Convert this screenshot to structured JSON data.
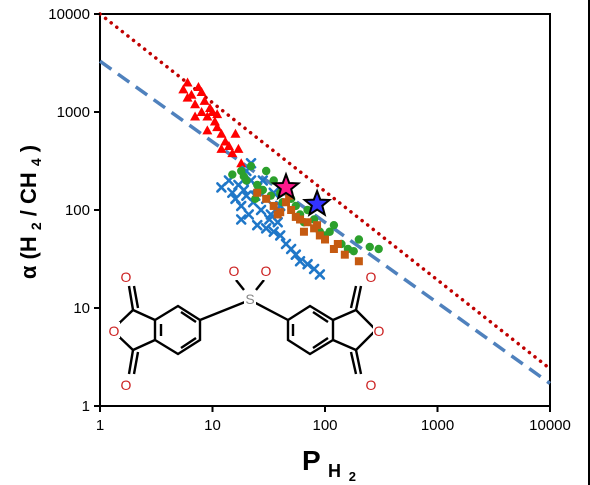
{
  "colors": {
    "upper_bound": "#c00000",
    "lower_bound": "#4f81bd",
    "red_series": "#ff0000",
    "blue_series": "#1f77c8",
    "green_series": "#2ca02c",
    "orange_series": "#c55a11",
    "star_magenta": "#ff1a8c",
    "star_blue": "#3333ff",
    "oxygen": "#cc2222",
    "sulfur": "#888888"
  },
  "axes": {
    "x_ticks": [
      "1",
      "10",
      "100",
      "1000",
      "10000"
    ],
    "y_ticks": [
      "1",
      "10",
      "100",
      "1000",
      "10000"
    ],
    "x_label_main": "P",
    "x_label_sub": "H2",
    "y_label_parts": [
      "α (H",
      "2",
      " / CH",
      "4",
      ")"
    ]
  },
  "structure": {
    "oxygen_label": "O",
    "sulfur_label": "S"
  },
  "chart_data": {
    "type": "scatter",
    "x_scale": "log",
    "y_scale": "log",
    "xlim": [
      1,
      10000
    ],
    "ylim": [
      1,
      10000
    ],
    "grid": false,
    "legend": "none",
    "lines": [
      {
        "style": "dotted",
        "color": "#c00000",
        "points": [
          [
            1,
            10000
          ],
          [
            10000,
            2.4
          ]
        ]
      },
      {
        "style": "dashed",
        "color": "#4f81bd",
        "points": [
          [
            1,
            3300
          ],
          [
            10000,
            1.7
          ]
        ]
      }
    ],
    "series": [
      {
        "marker": "triangle",
        "color": "#ff0000",
        "points": [
          [
            5.5,
            1700
          ],
          [
            6,
            2000
          ],
          [
            6.5,
            1500
          ],
          [
            7,
            1200
          ],
          [
            7.5,
            1800
          ],
          [
            8,
            1000
          ],
          [
            8.5,
            1300
          ],
          [
            9,
            900
          ],
          [
            9.5,
            1100
          ],
          [
            10,
            1000
          ],
          [
            10.5,
            800
          ],
          [
            11,
            700
          ],
          [
            12,
            600
          ],
          [
            13,
            500
          ],
          [
            14,
            450
          ],
          [
            15,
            380
          ],
          [
            16,
            600
          ],
          [
            17,
            420
          ],
          [
            6,
            1400
          ],
          [
            7,
            900
          ],
          [
            8,
            1600
          ],
          [
            9,
            650
          ],
          [
            11,
            950
          ],
          [
            12,
            420
          ],
          [
            18,
            300
          ]
        ]
      },
      {
        "marker": "x",
        "color": "#1f77c8",
        "points": [
          [
            12,
            170
          ],
          [
            14,
            200
          ],
          [
            15,
            150
          ],
          [
            16,
            130
          ],
          [
            17,
            180
          ],
          [
            18,
            110
          ],
          [
            19,
            160
          ],
          [
            20,
            140
          ],
          [
            21,
            90
          ],
          [
            22,
            200
          ],
          [
            23,
            120
          ],
          [
            25,
            170
          ],
          [
            27,
            100
          ],
          [
            30,
            130
          ],
          [
            33,
            90
          ],
          [
            35,
            60
          ],
          [
            38,
            75
          ],
          [
            40,
            55
          ],
          [
            45,
            45
          ],
          [
            50,
            40
          ],
          [
            55,
            35
          ],
          [
            60,
            30
          ],
          [
            70,
            28
          ],
          [
            80,
            25
          ],
          [
            90,
            22
          ],
          [
            20,
            250
          ],
          [
            18,
            80
          ],
          [
            25,
            70
          ],
          [
            30,
            65
          ],
          [
            22,
            300
          ],
          [
            28,
            200
          ],
          [
            35,
            150
          ],
          [
            40,
            110
          ],
          [
            24,
            140
          ],
          [
            32,
            80
          ]
        ]
      },
      {
        "marker": "circle",
        "color": "#2ca02c",
        "points": [
          [
            15,
            230
          ],
          [
            18,
            250
          ],
          [
            20,
            200
          ],
          [
            22,
            280
          ],
          [
            25,
            180
          ],
          [
            28,
            160
          ],
          [
            30,
            250
          ],
          [
            35,
            200
          ],
          [
            40,
            150
          ],
          [
            45,
            180
          ],
          [
            50,
            130
          ],
          [
            55,
            110
          ],
          [
            60,
            90
          ],
          [
            70,
            100
          ],
          [
            80,
            80
          ],
          [
            90,
            60
          ],
          [
            100,
            55
          ],
          [
            120,
            70
          ],
          [
            140,
            45
          ],
          [
            160,
            40
          ],
          [
            180,
            38
          ],
          [
            200,
            50
          ],
          [
            250,
            42
          ],
          [
            300,
            40
          ],
          [
            19,
            220
          ],
          [
            24,
            130
          ],
          [
            33,
            140
          ],
          [
            42,
            120
          ],
          [
            65,
            75
          ],
          [
            110,
            60
          ]
        ]
      },
      {
        "marker": "square",
        "color": "#c55a11",
        "points": [
          [
            25,
            150
          ],
          [
            30,
            130
          ],
          [
            35,
            110
          ],
          [
            40,
            95
          ],
          [
            45,
            120
          ],
          [
            50,
            100
          ],
          [
            55,
            85
          ],
          [
            60,
            80
          ],
          [
            70,
            75
          ],
          [
            80,
            65
          ],
          [
            90,
            55
          ],
          [
            100,
            50
          ],
          [
            120,
            40
          ],
          [
            150,
            35
          ],
          [
            200,
            30
          ],
          [
            38,
            90
          ],
          [
            48,
            140
          ],
          [
            65,
            60
          ],
          [
            85,
            70
          ],
          [
            130,
            45
          ]
        ]
      },
      {
        "marker": "star",
        "color": "#ff1a8c",
        "points": [
          [
            45,
            170
          ]
        ]
      },
      {
        "marker": "star",
        "color": "#3333ff",
        "points": [
          [
            85,
            115
          ]
        ]
      }
    ]
  }
}
